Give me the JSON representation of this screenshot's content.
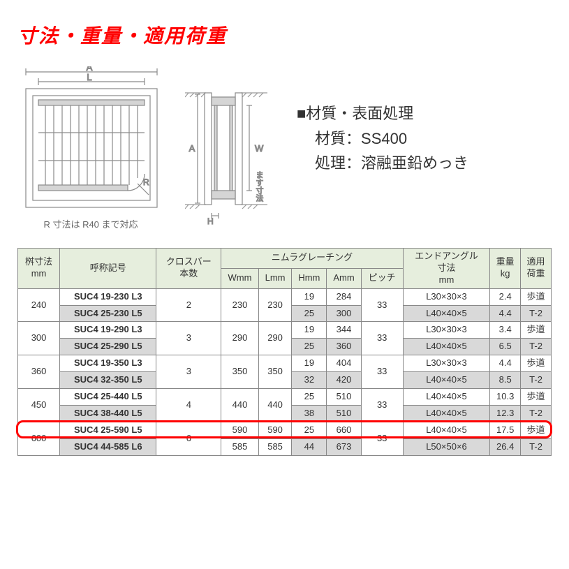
{
  "title": {
    "text": "寸法・重量・適用荷重",
    "color": "#ff0000",
    "fontsize": 28
  },
  "diagram": {
    "line_color": "#8a8a8a",
    "hatch_color": "#9a9a9a",
    "text_color": "#707070",
    "top_labels": {
      "A": "A",
      "L": "L",
      "R": "R"
    },
    "side_labels": {
      "A": "A",
      "W": "W",
      "H": "H",
      "masu": "ます寸法"
    },
    "caption": "R 寸法は R40 まで対応"
  },
  "material": {
    "heading": "■材質・表面処理",
    "line1_label": "材質：",
    "line1_value": "SS400",
    "line2_label": "処理：",
    "line2_value": "溶融亜鉛めっき"
  },
  "table": {
    "header_bg": "#e6eedd",
    "shade_bg": "#d9d9d9",
    "cols": {
      "masu": "桝寸法\nmm",
      "name": "呼称記号",
      "crossbar": "クロスバー\n本数",
      "group": "ニムラグレーチング",
      "w": "Wmm",
      "l": "Lmm",
      "h": "Hmm",
      "a": "Amm",
      "pitch": "ピッチ",
      "endangle": "エンドアングル\n寸法\nmm",
      "weight": "重量\nkg",
      "load": "適用\n荷重"
    },
    "rows": [
      {
        "masu": "240",
        "name": "SUC4 19-230 L3",
        "cb": "2",
        "w": "230",
        "l": "230",
        "h": "19",
        "a": "284",
        "p": "33",
        "ea": "L30×30×3",
        "wt": "2.4",
        "ld": "歩道",
        "shade": false
      },
      {
        "masu": "",
        "name": "SUC4 25-230 L5",
        "cb": "",
        "w": "",
        "l": "",
        "h": "25",
        "a": "300",
        "p": "",
        "ea": "L40×40×5",
        "wt": "4.4",
        "ld": "T-2",
        "shade": true
      },
      {
        "masu": "300",
        "name": "SUC4 19-290 L3",
        "cb": "3",
        "w": "290",
        "l": "290",
        "h": "19",
        "a": "344",
        "p": "33",
        "ea": "L30×30×3",
        "wt": "3.4",
        "ld": "歩道",
        "shade": false
      },
      {
        "masu": "",
        "name": "SUC4 25-290 L5",
        "cb": "",
        "w": "",
        "l": "",
        "h": "25",
        "a": "360",
        "p": "",
        "ea": "L40×40×5",
        "wt": "6.5",
        "ld": "T-2",
        "shade": true
      },
      {
        "masu": "360",
        "name": "SUC4 19-350 L3",
        "cb": "3",
        "w": "350",
        "l": "350",
        "h": "19",
        "a": "404",
        "p": "33",
        "ea": "L30×30×3",
        "wt": "4.4",
        "ld": "歩道",
        "shade": false
      },
      {
        "masu": "",
        "name": "SUC4 32-350 L5",
        "cb": "",
        "w": "",
        "l": "",
        "h": "32",
        "a": "420",
        "p": "",
        "ea": "L40×40×5",
        "wt": "8.5",
        "ld": "T-2",
        "shade": true
      },
      {
        "masu": "450",
        "name": "SUC4 25-440 L5",
        "cb": "4",
        "w": "440",
        "l": "440",
        "h": "25",
        "a": "510",
        "p": "33",
        "ea": "L40×40×5",
        "wt": "10.3",
        "ld": "歩道",
        "shade": false
      },
      {
        "masu": "",
        "name": "SUC4 38-440 L5",
        "cb": "",
        "w": "",
        "l": "",
        "h": "38",
        "a": "510",
        "p": "",
        "ea": "L40×40×5",
        "wt": "12.3",
        "ld": "T-2",
        "shade": true
      },
      {
        "masu": "600",
        "name": "SUC4 25-590 L5",
        "cb": "6",
        "w": "590",
        "l": "590",
        "h": "25",
        "a": "660",
        "p": "33",
        "ea": "L40×40×5",
        "wt": "17.5",
        "ld": "歩道",
        "shade": false,
        "highlight": true
      },
      {
        "masu": "",
        "name": "SUC4 44-585 L6",
        "cb": "",
        "w": "585",
        "l": "585",
        "h": "44",
        "a": "673",
        "p": "",
        "ea": "L50×50×6",
        "wt": "26.4",
        "ld": "T-2",
        "shade": true
      }
    ]
  },
  "highlight": {
    "color": "#ff0000",
    "row_index": 8
  }
}
